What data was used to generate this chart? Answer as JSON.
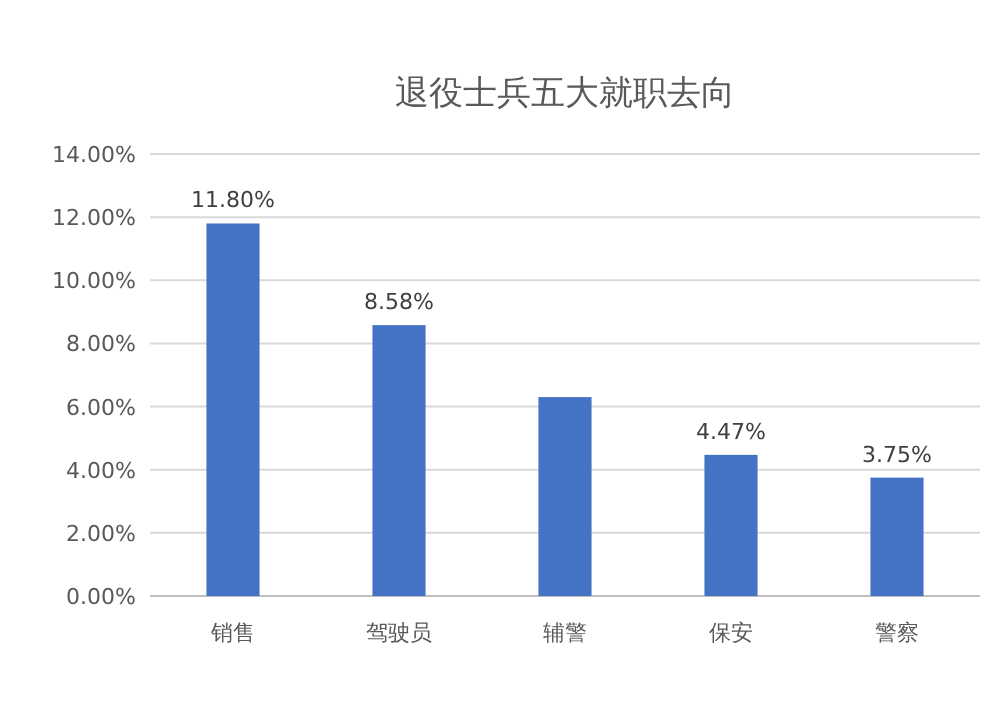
{
  "chart_data": {
    "type": "bar",
    "title": "退役士兵五大就职去向",
    "categories": [
      "销售",
      "驾驶员",
      "辅警",
      "保安",
      "警察"
    ],
    "values": [
      11.8,
      8.58,
      6.3,
      4.47,
      3.75
    ],
    "value_labels": [
      "11.80%",
      "8.58%",
      null,
      "4.47%",
      "3.75%"
    ],
    "color": "#4472c4",
    "ylim": [
      0,
      14
    ],
    "yticks": [
      {
        "value": 0,
        "label": "0.00%"
      },
      {
        "value": 2,
        "label": "2.00%"
      },
      {
        "value": 4,
        "label": "4.00%"
      },
      {
        "value": 6,
        "label": "6.00%"
      },
      {
        "value": 8,
        "label": "8.00%"
      },
      {
        "value": 10,
        "label": "10.00%"
      },
      {
        "value": 12,
        "label": "12.00%"
      },
      {
        "value": 14,
        "label": "14.00%"
      }
    ],
    "grid": "y"
  }
}
